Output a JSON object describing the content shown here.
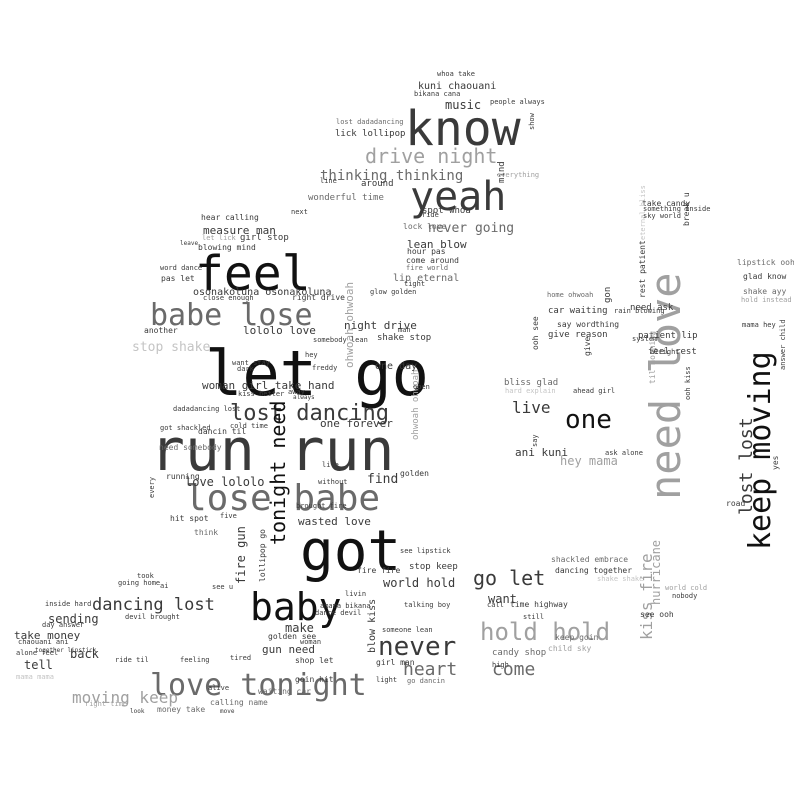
{
  "image_type": "word cloud",
  "colors": {
    "background": "#ffffff",
    "black": "#111111",
    "dark": "#3a3a3a",
    "mid": "#6a6a6a",
    "light": "#a0a0a0",
    "faint": "#c4c4c4"
  },
  "words": [
    {
      "text": "run run",
      "color": "dark"
    },
    {
      "text": "let go",
      "color": "black"
    },
    {
      "text": "know",
      "color": "dark"
    },
    {
      "text": "feel",
      "color": "black"
    },
    {
      "text": "yeah",
      "color": "dark"
    },
    {
      "text": "got",
      "color": "black"
    },
    {
      "text": "baby",
      "color": "black"
    },
    {
      "text": "lose babe",
      "color": "mid"
    },
    {
      "text": "love tonight",
      "color": "mid"
    },
    {
      "text": "babe lose",
      "color": "mid"
    },
    {
      "text": "need love",
      "color": "light"
    },
    {
      "text": "keep moving",
      "color": "black"
    },
    {
      "text": "lost dancing",
      "color": "dark"
    },
    {
      "text": "drive night",
      "color": "light"
    },
    {
      "text": "never",
      "color": "dark"
    },
    {
      "text": "hold hold",
      "color": "light"
    },
    {
      "text": "tonight need",
      "color": "black"
    },
    {
      "text": "thinking thinking",
      "color": "mid"
    },
    {
      "text": "dancing lost",
      "color": "dark"
    },
    {
      "text": "heart",
      "color": "mid"
    },
    {
      "text": "come",
      "color": "mid"
    },
    {
      "text": "go let",
      "color": "dark"
    },
    {
      "text": "lost lost",
      "color": "dark"
    },
    {
      "text": "moving keep",
      "color": "light"
    },
    {
      "text": "one",
      "color": "black"
    },
    {
      "text": "live",
      "color": "dark"
    },
    {
      "text": "kiss fire",
      "color": "light"
    },
    {
      "text": "never going",
      "color": "mid"
    },
    {
      "text": "measure man",
      "color": "dark"
    },
    {
      "text": "music",
      "color": "dark"
    },
    {
      "text": "lean blow",
      "color": "dark"
    },
    {
      "text": "night drive",
      "color": "dark"
    },
    {
      "text": "love lololo",
      "color": "dark"
    },
    {
      "text": "wasted love",
      "color": "dark"
    },
    {
      "text": "one forever",
      "color": "dark"
    },
    {
      "text": "world hold",
      "color": "dark"
    },
    {
      "text": "gun need",
      "color": "dark"
    },
    {
      "text": "want",
      "color": "dark"
    },
    {
      "text": "find",
      "color": "dark"
    },
    {
      "text": "make",
      "color": "dark"
    },
    {
      "text": "kuni chaouani",
      "color": "dark"
    },
    {
      "text": "lololo love",
      "color": "dark"
    },
    {
      "text": "hey mama",
      "color": "light"
    },
    {
      "text": "ani kuni",
      "color": "dark"
    },
    {
      "text": "stop shake",
      "color": "faint"
    },
    {
      "text": "fire gun",
      "color": "dark"
    },
    {
      "text": "ohwoah ohwoah",
      "color": "light"
    },
    {
      "text": "osonakoluna osonakoluna",
      "color": "dark"
    },
    {
      "text": "woman girl take hand",
      "color": "dark"
    },
    {
      "text": "hurricane",
      "color": "light"
    },
    {
      "text": "take money",
      "color": "dark"
    },
    {
      "text": "sending",
      "color": "dark"
    },
    {
      "text": "back",
      "color": "dark"
    },
    {
      "text": "tell",
      "color": "dark"
    },
    {
      "text": "ohwoah ohwoah",
      "color": "light"
    },
    {
      "text": "girl stop",
      "color": "dark"
    },
    {
      "text": "blowing mind",
      "color": "dark"
    },
    {
      "text": "pas let",
      "color": "dark"
    },
    {
      "text": "word dance",
      "color": "dark"
    },
    {
      "text": "hear calling",
      "color": "dark"
    },
    {
      "text": "come around",
      "color": "dark"
    },
    {
      "text": "lip eternal",
      "color": "mid"
    },
    {
      "text": "fire world",
      "color": "mid"
    },
    {
      "text": "hour pas",
      "color": "dark"
    },
    {
      "text": "lock love",
      "color": "mid"
    },
    {
      "text": "spot whoa",
      "color": "dark"
    },
    {
      "text": "lick lollipop",
      "color": "dark"
    },
    {
      "text": "wonderful time",
      "color": "mid"
    },
    {
      "text": "around",
      "color": "dark"
    },
    {
      "text": "people always",
      "color": "dark"
    },
    {
      "text": "whoa take",
      "color": "dark"
    },
    {
      "text": "bikana cana",
      "color": "dark"
    },
    {
      "text": "lost dadadancing",
      "color": "mid"
    },
    {
      "text": "mind",
      "color": "dark"
    },
    {
      "text": "shackled embrace",
      "color": "mid"
    },
    {
      "text": "dancing together",
      "color": "dark"
    },
    {
      "text": "shake shake",
      "color": "faint"
    },
    {
      "text": "rest patient",
      "color": "dark"
    },
    {
      "text": "take candy",
      "color": "dark"
    },
    {
      "text": "need ask",
      "color": "dark"
    },
    {
      "text": "patient lip",
      "color": "dark"
    },
    {
      "text": "feel rest",
      "color": "dark"
    },
    {
      "text": "car waiting",
      "color": "dark"
    },
    {
      "text": "say word",
      "color": "dark"
    },
    {
      "text": "give reason",
      "color": "dark"
    },
    {
      "text": "bliss glad",
      "color": "mid"
    },
    {
      "text": "ahead girl",
      "color": "dark"
    },
    {
      "text": "say",
      "color": "dark"
    },
    {
      "text": "gon",
      "color": "dark"
    },
    {
      "text": "give",
      "color": "dark"
    },
    {
      "text": "lipstick ooh",
      "color": "mid"
    },
    {
      "text": "glad know",
      "color": "dark"
    },
    {
      "text": "shake ayy",
      "color": "mid"
    },
    {
      "text": "hold instead",
      "color": "light"
    },
    {
      "text": "yes",
      "color": "dark"
    },
    {
      "text": "road",
      "color": "dark"
    },
    {
      "text": "answer child",
      "color": "dark"
    },
    {
      "text": "time highway",
      "color": "dark"
    },
    {
      "text": "candy shop",
      "color": "mid"
    },
    {
      "text": "child sky",
      "color": "light"
    },
    {
      "text": "keep goin",
      "color": "mid"
    },
    {
      "text": "see ooh",
      "color": "dark"
    },
    {
      "text": "girl man",
      "color": "dark"
    },
    {
      "text": "someone lean",
      "color": "dark"
    },
    {
      "text": "talking boy",
      "color": "dark"
    },
    {
      "text": "stop keep",
      "color": "dark"
    },
    {
      "text": "blow kiss",
      "color": "dark"
    },
    {
      "text": "see lipstick",
      "color": "dark"
    },
    {
      "text": "go dancin",
      "color": "mid"
    },
    {
      "text": "goin hit",
      "color": "dark"
    },
    {
      "text": "light",
      "color": "dark"
    },
    {
      "text": "high",
      "color": "dark"
    },
    {
      "text": "shop let",
      "color": "dark"
    },
    {
      "text": "golden see",
      "color": "dark"
    },
    {
      "text": "woman",
      "color": "dark"
    },
    {
      "text": "dance devil",
      "color": "dark"
    },
    {
      "text": "livin",
      "color": "dark"
    },
    {
      "text": "fire fire",
      "color": "dark"
    },
    {
      "text": "amama bikana",
      "color": "dark"
    },
    {
      "text": "brought fire",
      "color": "dark"
    },
    {
      "text": "without",
      "color": "dark"
    },
    {
      "text": "life",
      "color": "dark"
    },
    {
      "text": "golden",
      "color": "dark"
    },
    {
      "text": "lollipop go",
      "color": "dark"
    },
    {
      "text": "feeling",
      "color": "dark"
    },
    {
      "text": "tired",
      "color": "dark"
    },
    {
      "text": "waiting car",
      "color": "mid"
    },
    {
      "text": "calling name",
      "color": "mid"
    },
    {
      "text": "alive",
      "color": "dark"
    },
    {
      "text": "money take",
      "color": "mid"
    },
    {
      "text": "right time",
      "color": "light"
    },
    {
      "text": "look",
      "color": "dark"
    },
    {
      "text": "move",
      "color": "dark"
    },
    {
      "text": "ride til",
      "color": "dark"
    },
    {
      "text": "alone feel",
      "color": "dark"
    },
    {
      "text": "chaouani ani",
      "color": "dark"
    },
    {
      "text": "inside hard",
      "color": "dark"
    },
    {
      "text": "day answer",
      "color": "dark"
    },
    {
      "text": "together lipstick",
      "color": "dark"
    },
    {
      "text": "mama mama",
      "color": "faint"
    },
    {
      "text": "devil brought",
      "color": "dark"
    },
    {
      "text": "going home",
      "color": "dark"
    },
    {
      "text": "took",
      "color": "dark"
    },
    {
      "text": "ai",
      "color": "dark"
    },
    {
      "text": "see u",
      "color": "dark"
    },
    {
      "text": "hit spot",
      "color": "dark"
    },
    {
      "text": "think",
      "color": "mid"
    },
    {
      "text": "five",
      "color": "dark"
    },
    {
      "text": "running",
      "color": "dark"
    },
    {
      "text": "dancin til",
      "color": "dark"
    },
    {
      "text": "dadadancing lost",
      "color": "dark"
    },
    {
      "text": "got shackled",
      "color": "dark"
    },
    {
      "text": "cold time",
      "color": "dark"
    },
    {
      "text": "kiss better",
      "color": "dark"
    },
    {
      "text": "away",
      "color": "dark"
    },
    {
      "text": "always",
      "color": "dark"
    },
    {
      "text": "freddy",
      "color": "dark"
    },
    {
      "text": "dark",
      "color": "dark"
    },
    {
      "text": "close enough",
      "color": "dark"
    },
    {
      "text": "right drive",
      "color": "dark"
    },
    {
      "text": "another",
      "color": "dark"
    },
    {
      "text": "need somebody",
      "color": "mid"
    },
    {
      "text": "every",
      "color": "dark"
    },
    {
      "text": "one day",
      "color": "dark"
    },
    {
      "text": "shake stop",
      "color": "dark"
    },
    {
      "text": "ooh see",
      "color": "dark"
    },
    {
      "text": "thing",
      "color": "dark"
    },
    {
      "text": "til morning",
      "color": "light"
    },
    {
      "text": "ask alone",
      "color": "dark"
    },
    {
      "text": "ooh kiss",
      "color": "dark"
    },
    {
      "text": "let lick",
      "color": "light"
    },
    {
      "text": "leave",
      "color": "dark"
    },
    {
      "text": "next",
      "color": "dark"
    },
    {
      "text": "line",
      "color": "dark"
    },
    {
      "text": "everything",
      "color": "light"
    },
    {
      "text": "ride",
      "color": "dark"
    },
    {
      "text": "break u",
      "color": "dark"
    },
    {
      "text": "eternal bliss",
      "color": "faint"
    },
    {
      "text": "something inside",
      "color": "dark"
    },
    {
      "text": "sky world",
      "color": "dark"
    },
    {
      "text": "glow golden",
      "color": "dark"
    },
    {
      "text": "home ohwoah",
      "color": "mid"
    },
    {
      "text": "rain blowing",
      "color": "dark"
    },
    {
      "text": "system",
      "color": "dark"
    },
    {
      "text": "alright",
      "color": "dark"
    },
    {
      "text": "tight",
      "color": "dark"
    },
    {
      "text": "man",
      "color": "dark"
    },
    {
      "text": "want stay",
      "color": "dark"
    },
    {
      "text": "somebody lean",
      "color": "dark"
    },
    {
      "text": "hey",
      "color": "dark"
    },
    {
      "text": "mama hey",
      "color": "dark"
    },
    {
      "text": "still",
      "color": "dark"
    },
    {
      "text": "call",
      "color": "dark"
    },
    {
      "text": "show",
      "color": "dark"
    },
    {
      "text": "hard explain",
      "color": "faint"
    },
    {
      "text": "world cold",
      "color": "light"
    },
    {
      "text": "nobody",
      "color": "dark"
    },
    {
      "text": "open",
      "color": "dark"
    },
    {
      "text": "hero measure",
      "color": "dark"
    }
  ]
}
